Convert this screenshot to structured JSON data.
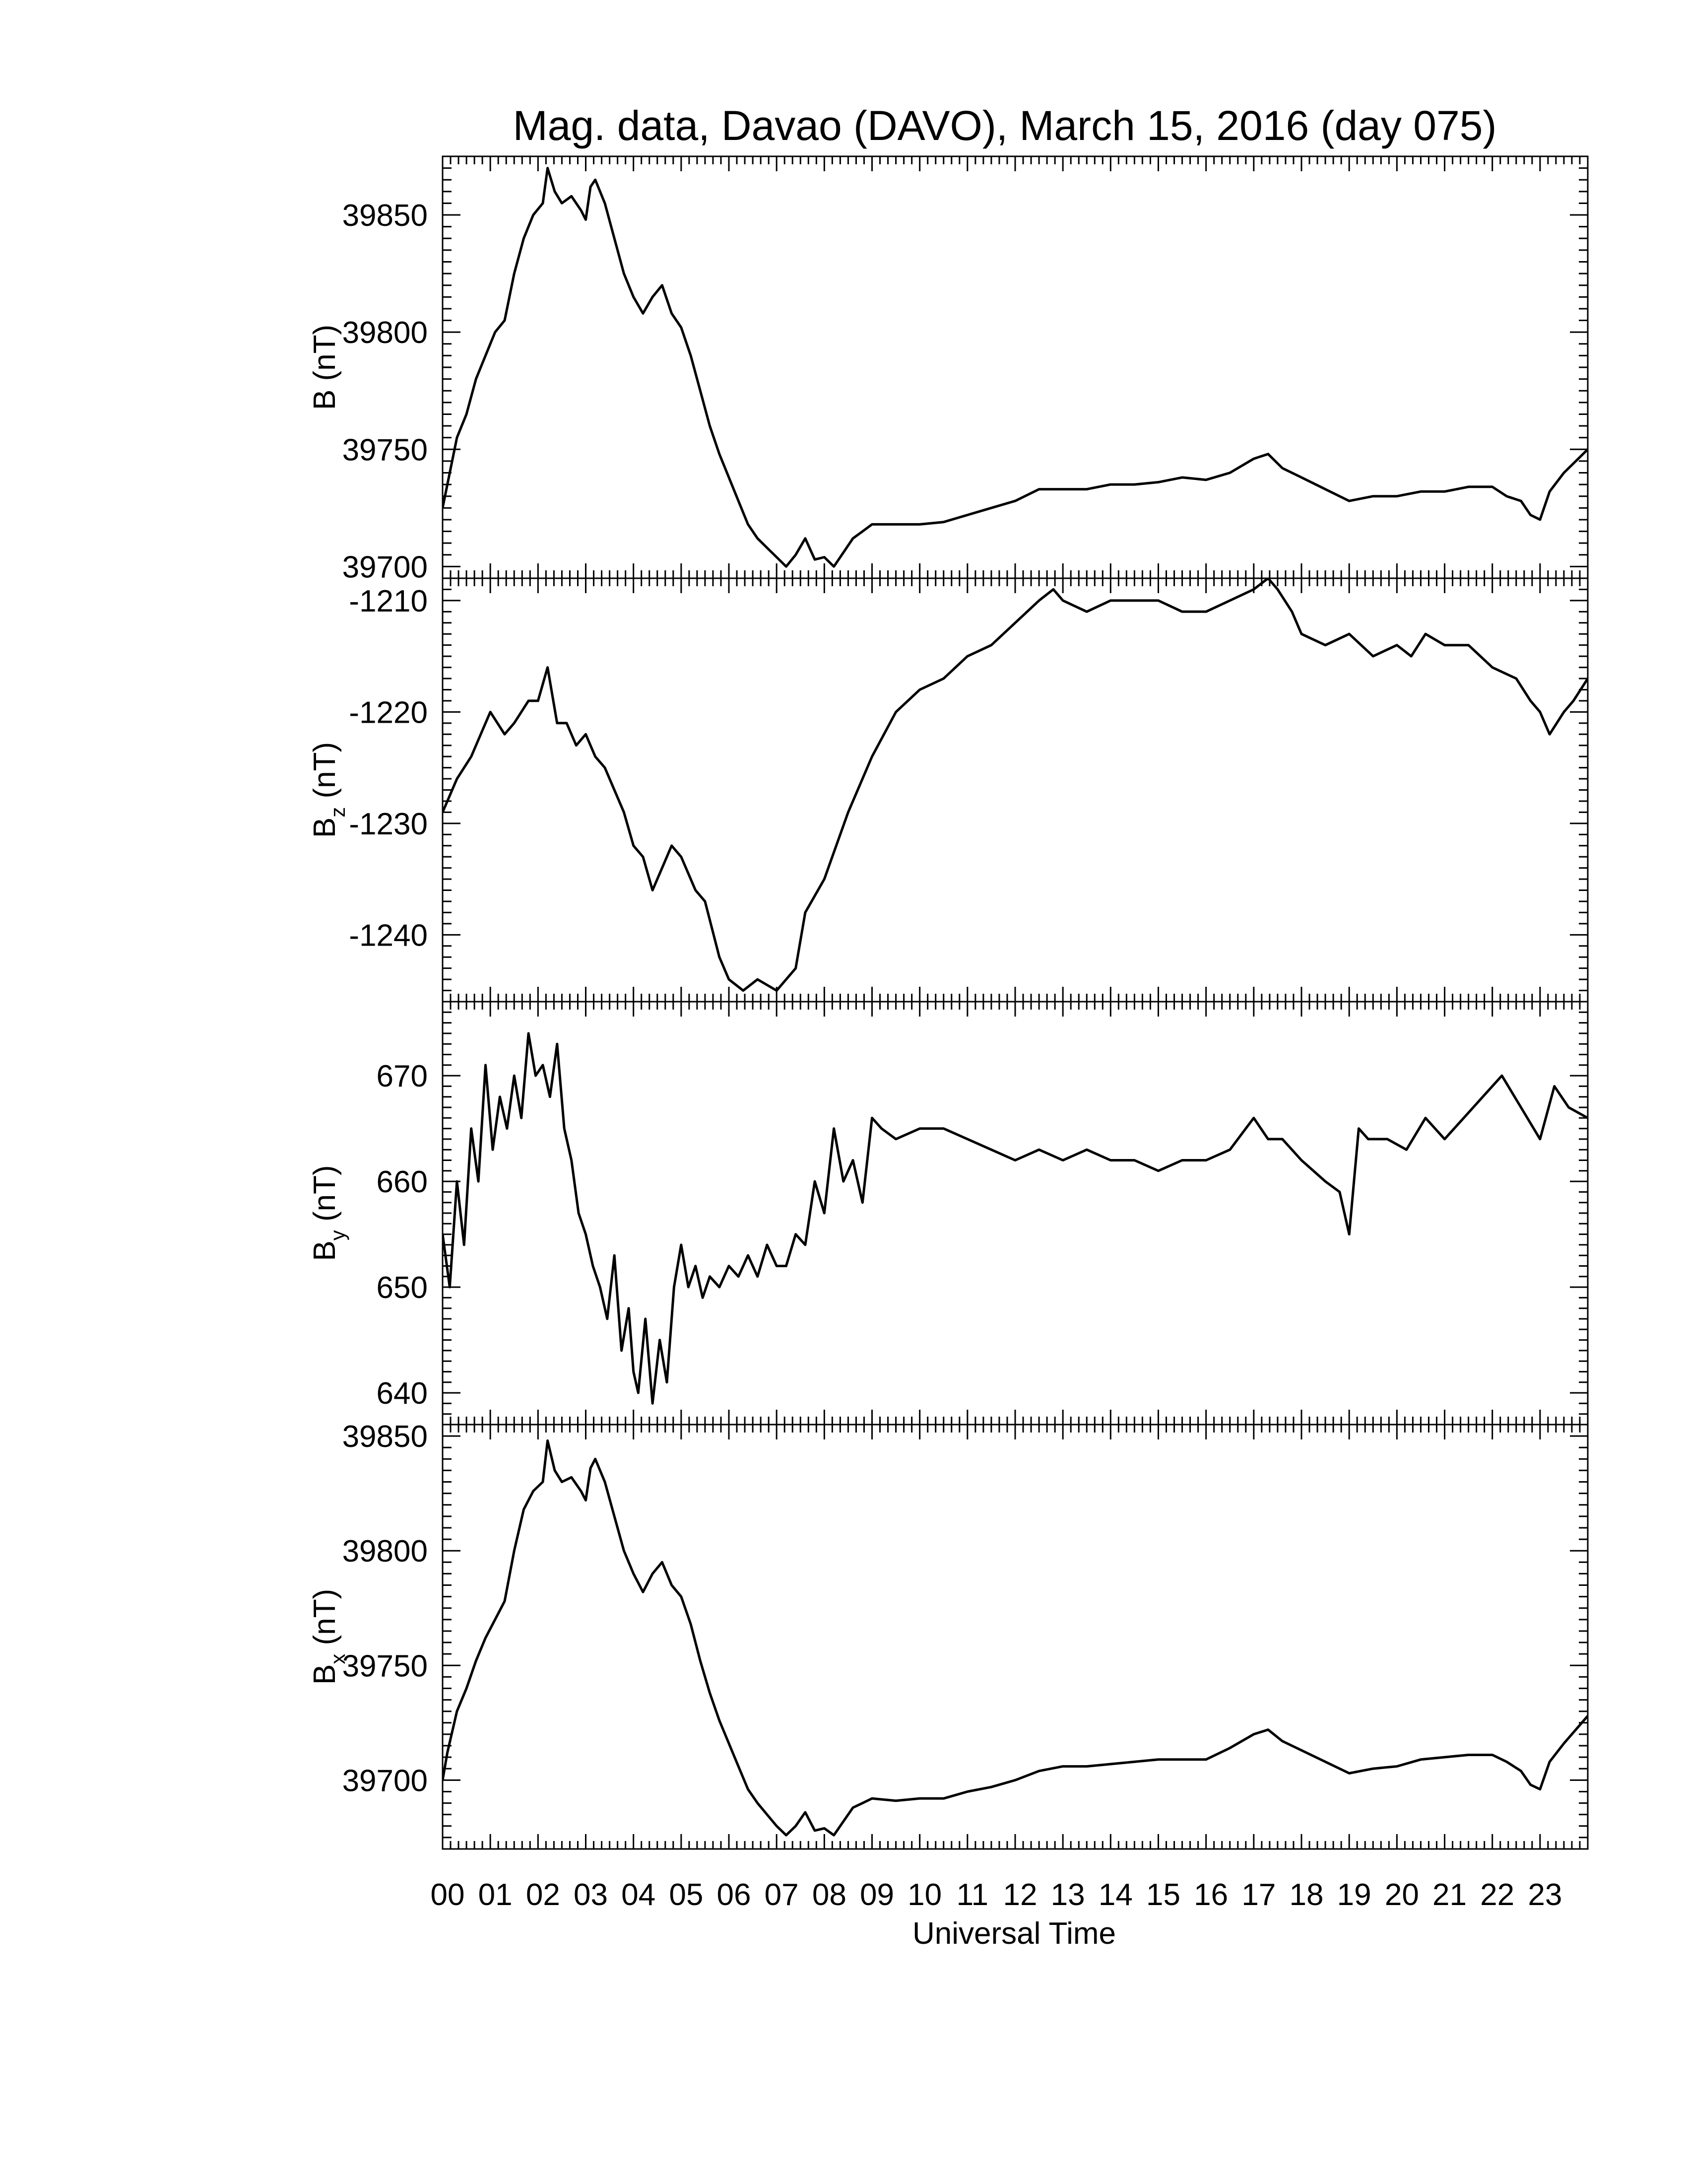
{
  "chart_data": {
    "title": "Mag. data, Davao (DAVO), March 15, 2016 (day 075)",
    "type": "line",
    "xlabel": "Universal Time",
    "xlim": [
      0,
      24
    ],
    "x_tick_labels": [
      "00",
      "01",
      "02",
      "03",
      "04",
      "05",
      "06",
      "07",
      "08",
      "09",
      "10",
      "11",
      "12",
      "13",
      "14",
      "15",
      "16",
      "17",
      "18",
      "19",
      "20",
      "21",
      "22",
      "23"
    ],
    "grid": false,
    "panels": [
      {
        "ylabel_main": "B",
        "ylabel_sub": "",
        "ylabel_unit": "(nT)",
        "ylim": [
          39695,
          39875
        ],
        "yticks": [
          39700,
          39750,
          39800,
          39850
        ],
        "ytick_labels": [
          "39700",
          "39750",
          "39800",
          "39850"
        ],
        "x": [
          0,
          0.1,
          0.3,
          0.5,
          0.7,
          0.9,
          1.1,
          1.3,
          1.5,
          1.7,
          1.9,
          2.1,
          2.2,
          2.35,
          2.5,
          2.7,
          2.9,
          3.0,
          3.1,
          3.2,
          3.4,
          3.6,
          3.8,
          4.0,
          4.2,
          4.4,
          4.6,
          4.8,
          5.0,
          5.2,
          5.4,
          5.6,
          5.8,
          6.0,
          6.2,
          6.4,
          6.6,
          6.8,
          7.0,
          7.2,
          7.4,
          7.6,
          7.8,
          8.0,
          8.2,
          8.4,
          8.6,
          8.8,
          9.0,
          9.5,
          10.0,
          10.5,
          11.0,
          11.5,
          12.0,
          12.5,
          13.0,
          13.5,
          14.0,
          14.5,
          15.0,
          15.5,
          16.0,
          16.5,
          17.0,
          17.3,
          17.6,
          18.0,
          18.5,
          19.0,
          19.5,
          20.0,
          20.5,
          21.0,
          21.5,
          22.0,
          22.3,
          22.6,
          22.8,
          23.0,
          23.2,
          23.5,
          24.0
        ],
        "values": [
          39725,
          39735,
          39755,
          39765,
          39780,
          39790,
          39800,
          39805,
          39825,
          39840,
          39850,
          39855,
          39870,
          39860,
          39855,
          39858,
          39852,
          39848,
          39862,
          39865,
          39855,
          39840,
          39825,
          39815,
          39808,
          39815,
          39820,
          39808,
          39802,
          39790,
          39775,
          39760,
          39748,
          39738,
          39728,
          39718,
          39712,
          39708,
          39704,
          39700,
          39705,
          39712,
          39703,
          39704,
          39700,
          39706,
          39712,
          39715,
          39718,
          39718,
          39718,
          39719,
          39722,
          39725,
          39728,
          39733,
          39733,
          39733,
          39735,
          39735,
          39736,
          39738,
          39737,
          39740,
          39746,
          39748,
          39742,
          39738,
          39733,
          39728,
          39730,
          39730,
          39732,
          39732,
          39734,
          39734,
          39730,
          39728,
          39722,
          39720,
          39732,
          39740,
          39750
        ]
      },
      {
        "ylabel_main": "B",
        "ylabel_sub": "z",
        "ylabel_unit": "(nT)",
        "ylim": [
          -1246,
          -1208
        ],
        "yticks": [
          -1240,
          -1230,
          -1220,
          -1210
        ],
        "ytick_labels": [
          "-1240",
          "-1230",
          "-1220",
          "-1210"
        ],
        "x": [
          0,
          0.3,
          0.6,
          0.8,
          1.0,
          1.3,
          1.5,
          1.8,
          2.0,
          2.2,
          2.4,
          2.6,
          2.8,
          3.0,
          3.2,
          3.4,
          3.6,
          3.8,
          4.0,
          4.2,
          4.4,
          4.6,
          4.8,
          5.0,
          5.3,
          5.5,
          5.8,
          6.0,
          6.3,
          6.6,
          7.0,
          7.4,
          7.6,
          8.0,
          8.5,
          9.0,
          9.5,
          10.0,
          10.5,
          11.0,
          11.5,
          12.0,
          12.5,
          12.8,
          13.0,
          13.5,
          14.0,
          14.5,
          15.0,
          15.5,
          16.0,
          16.5,
          17.0,
          17.3,
          17.5,
          17.8,
          18.0,
          18.5,
          19.0,
          19.5,
          20.0,
          20.3,
          20.6,
          21.0,
          21.5,
          22.0,
          22.5,
          22.8,
          23.0,
          23.2,
          23.5,
          23.7,
          24.0
        ],
        "values": [
          -1229,
          -1226,
          -1224,
          -1222,
          -1220,
          -1222,
          -1221,
          -1219,
          -1219,
          -1216,
          -1221,
          -1221,
          -1223,
          -1222,
          -1224,
          -1225,
          -1227,
          -1229,
          -1232,
          -1233,
          -1236,
          -1234,
          -1232,
          -1233,
          -1236,
          -1237,
          -1242,
          -1244,
          -1245,
          -1244,
          -1245,
          -1243,
          -1238,
          -1235,
          -1229,
          -1224,
          -1220,
          -1218,
          -1217,
          -1215,
          -1214,
          -1212,
          -1210,
          -1209,
          -1210,
          -1211,
          -1210,
          -1210,
          -1210,
          -1211,
          -1211,
          -1210,
          -1209,
          -1208,
          -1209,
          -1211,
          -1213,
          -1214,
          -1213,
          -1215,
          -1214,
          -1215,
          -1213,
          -1214,
          -1214,
          -1216,
          -1217,
          -1219,
          -1220,
          -1222,
          -1220,
          -1219,
          -1217
        ]
      },
      {
        "ylabel_main": "B",
        "ylabel_sub": "y",
        "ylabel_unit": "(nT)",
        "ylim": [
          637,
          677
        ],
        "yticks": [
          640,
          650,
          660,
          670
        ],
        "ytick_labels": [
          "640",
          "650",
          "660",
          "670"
        ],
        "x": [
          0,
          0.15,
          0.3,
          0.45,
          0.6,
          0.75,
          0.9,
          1.05,
          1.2,
          1.35,
          1.5,
          1.65,
          1.8,
          1.95,
          2.1,
          2.25,
          2.4,
          2.55,
          2.7,
          2.85,
          3.0,
          3.15,
          3.3,
          3.45,
          3.6,
          3.75,
          3.9,
          4.0,
          4.1,
          4.25,
          4.4,
          4.55,
          4.7,
          4.85,
          5.0,
          5.15,
          5.3,
          5.45,
          5.6,
          5.8,
          6.0,
          6.2,
          6.4,
          6.6,
          6.8,
          7.0,
          7.2,
          7.4,
          7.6,
          7.8,
          8.0,
          8.2,
          8.4,
          8.6,
          8.8,
          9.0,
          9.2,
          9.5,
          10.0,
          10.5,
          11.0,
          11.5,
          12.0,
          12.5,
          13.0,
          13.5,
          14.0,
          14.5,
          15.0,
          15.5,
          16.0,
          16.5,
          17.0,
          17.3,
          17.6,
          18.0,
          18.5,
          18.8,
          19.0,
          19.2,
          19.4,
          19.8,
          20.2,
          20.6,
          21.0,
          21.4,
          21.8,
          22.2,
          22.6,
          23.0,
          23.3,
          23.6,
          24.0
        ],
        "values": [
          655,
          650,
          660,
          654,
          665,
          660,
          671,
          663,
          668,
          665,
          670,
          666,
          674,
          670,
          671,
          668,
          673,
          665,
          662,
          657,
          655,
          652,
          650,
          647,
          653,
          644,
          648,
          642,
          640,
          647,
          639,
          645,
          641,
          650,
          654,
          650,
          652,
          649,
          651,
          650,
          652,
          651,
          653,
          651,
          654,
          652,
          652,
          655,
          654,
          660,
          657,
          665,
          660,
          662,
          658,
          666,
          665,
          664,
          665,
          665,
          664,
          663,
          662,
          663,
          662,
          663,
          662,
          662,
          661,
          662,
          662,
          663,
          666,
          664,
          664,
          662,
          660,
          659,
          655,
          665,
          664,
          664,
          663,
          666,
          664,
          666,
          668,
          670,
          667,
          664,
          669,
          667,
          666
        ]
      },
      {
        "ylabel_main": "B",
        "ylabel_sub": "x",
        "ylabel_unit": "(nT)",
        "ylim": [
          39670,
          39855
        ],
        "yticks": [
          39700,
          39750,
          39800,
          39850
        ],
        "ytick_labels": [
          "39700",
          "39750",
          "39800",
          "39850"
        ],
        "x": [
          0,
          0.1,
          0.3,
          0.5,
          0.7,
          0.9,
          1.1,
          1.3,
          1.5,
          1.7,
          1.9,
          2.1,
          2.2,
          2.35,
          2.5,
          2.7,
          2.9,
          3.0,
          3.1,
          3.2,
          3.4,
          3.6,
          3.8,
          4.0,
          4.2,
          4.4,
          4.6,
          4.8,
          5.0,
          5.2,
          5.4,
          5.6,
          5.8,
          6.0,
          6.2,
          6.4,
          6.6,
          6.8,
          7.0,
          7.2,
          7.4,
          7.6,
          7.8,
          8.0,
          8.2,
          8.4,
          8.6,
          8.8,
          9.0,
          9.5,
          10.0,
          10.5,
          11.0,
          11.5,
          12.0,
          12.5,
          13.0,
          13.5,
          14.0,
          14.5,
          15.0,
          15.5,
          16.0,
          16.5,
          17.0,
          17.3,
          17.6,
          18.0,
          18.5,
          19.0,
          19.5,
          20.0,
          20.5,
          21.0,
          21.5,
          22.0,
          22.3,
          22.6,
          22.8,
          23.0,
          23.2,
          23.5,
          24.0
        ],
        "values": [
          39700,
          39712,
          39730,
          39740,
          39752,
          39762,
          39770,
          39778,
          39800,
          39818,
          39826,
          39830,
          39848,
          39835,
          39830,
          39832,
          39826,
          39822,
          39836,
          39840,
          39830,
          39815,
          39800,
          39790,
          39782,
          39790,
          39795,
          39785,
          39780,
          39768,
          39752,
          39738,
          39726,
          39716,
          39706,
          39696,
          39690,
          39685,
          39680,
          39676,
          39680,
          39686,
          39678,
          39679,
          39676,
          39682,
          39688,
          39690,
          39692,
          39691,
          39692,
          39692,
          39695,
          39697,
          39700,
          39704,
          39706,
          39706,
          39707,
          39708,
          39709,
          39709,
          39709,
          39714,
          39720,
          39722,
          39717,
          39713,
          39708,
          39703,
          39705,
          39706,
          39709,
          39710,
          39711,
          39711,
          39708,
          39704,
          39698,
          39696,
          39708,
          39716,
          39728
        ]
      }
    ]
  }
}
